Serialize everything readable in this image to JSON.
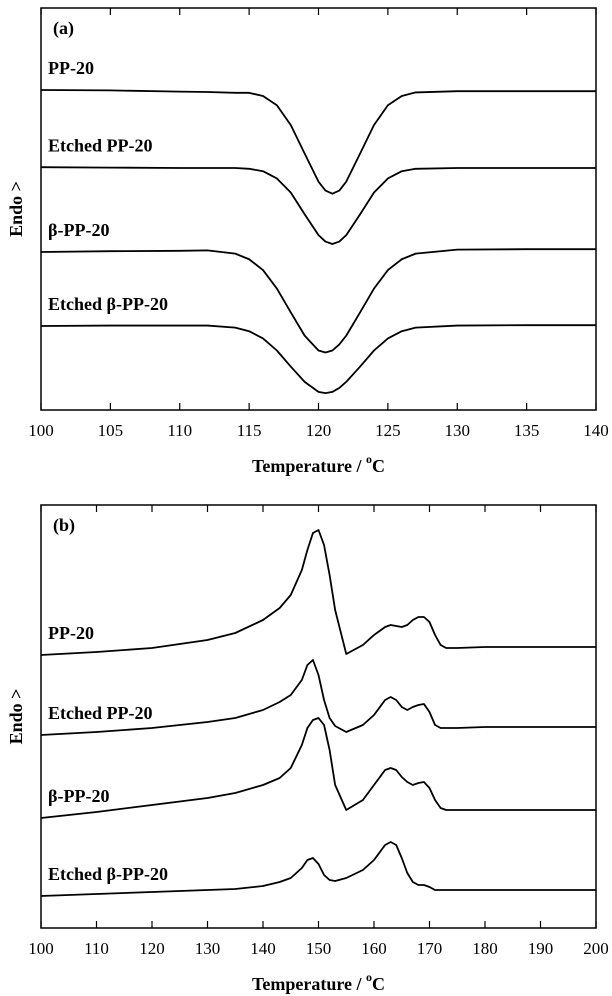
{
  "chart_data": [
    {
      "type": "line",
      "panel_label": "(a)",
      "ylabel": "Endo >",
      "xlabel": {
        "text": "Temperature / ",
        "sup": "o",
        "unit": "C"
      },
      "xlim": [
        100,
        140
      ],
      "xticks": [
        100,
        105,
        110,
        115,
        120,
        125,
        130,
        135,
        140
      ],
      "ylim": [
        0,
        100
      ],
      "x": [
        100,
        105,
        110,
        112,
        114,
        115,
        116,
        117,
        118,
        119,
        120,
        120.5,
        121,
        121.5,
        122,
        123,
        124,
        125,
        126,
        127,
        130,
        135,
        140
      ],
      "series": [
        {
          "name": "PP-20",
          "color": "#000000",
          "values": [
            79.6,
            79.5,
            79.2,
            79.1,
            78.9,
            78.9,
            78.1,
            75.8,
            70.9,
            63.8,
            56.8,
            54.6,
            53.8,
            54.6,
            56.8,
            63.8,
            70.9,
            75.8,
            78.1,
            79.0,
            79.3,
            79.3,
            79.3
          ]
        },
        {
          "name": "Etched PP-20",
          "color": "#000000",
          "values": [
            60.4,
            60.3,
            60.2,
            60.2,
            60.2,
            60.0,
            59.4,
            57.6,
            54.1,
            48.7,
            43.5,
            41.9,
            41.3,
            41.9,
            43.5,
            48.7,
            54.1,
            57.6,
            59.4,
            60.0,
            60.2,
            60.2,
            60.2
          ]
        },
        {
          "name": "β-PP-20",
          "color": "#000000",
          "values": [
            39.3,
            39.5,
            39.6,
            39.7,
            38.9,
            37.5,
            34.8,
            30.2,
            24.3,
            18.5,
            14.8,
            14.3,
            14.8,
            16.3,
            18.5,
            24.3,
            30.2,
            34.8,
            37.5,
            38.9,
            39.9,
            40.0,
            40.0
          ]
        },
        {
          "name": "Etched β-PP-20",
          "color": "#000000",
          "values": [
            20.9,
            21.0,
            21.0,
            21.0,
            20.5,
            19.6,
            17.8,
            14.8,
            10.8,
            7.0,
            4.5,
            4.2,
            4.5,
            5.5,
            7.0,
            10.8,
            14.8,
            17.8,
            19.6,
            20.5,
            21.0,
            21.1,
            21.1
          ]
        }
      ]
    },
    {
      "type": "line",
      "panel_label": "(b)",
      "ylabel": "Endo >",
      "xlabel": {
        "text": "Temperature / ",
        "sup": "o",
        "unit": "C"
      },
      "xlim": [
        100,
        200
      ],
      "xticks": [
        100,
        110,
        120,
        130,
        140,
        150,
        160,
        170,
        180,
        190,
        200
      ],
      "ylim": [
        0,
        423
      ],
      "x": [
        100,
        110,
        120,
        130,
        135,
        140,
        143,
        145,
        147,
        148,
        149,
        150,
        151,
        152,
        153,
        155,
        158,
        160,
        162,
        163,
        164,
        165,
        166,
        167,
        168,
        169,
        170,
        171,
        172,
        173,
        175,
        180,
        190,
        200
      ],
      "series": [
        {
          "name": "PP-20",
          "color": "#000000",
          "values": [
            273,
            276,
            280,
            288,
            295,
            308,
            320,
            333,
            358,
            378,
            395,
            398,
            383,
            353,
            318,
            274,
            283,
            293,
            301,
            303,
            302,
            301,
            303,
            308,
            311,
            311,
            306,
            293,
            283,
            280,
            280,
            281,
            281,
            281
          ]
        },
        {
          "name": "Etched PP-20",
          "color": "#000000",
          "values": [
            193,
            196,
            200,
            206,
            210,
            218,
            226,
            233,
            248,
            263,
            268,
            253,
            228,
            210,
            202,
            196,
            203,
            213,
            228,
            231,
            228,
            221,
            218,
            221,
            223,
            224,
            216,
            203,
            200,
            200,
            200,
            201,
            201,
            201
          ]
        },
        {
          "name": "β-PP-20",
          "color": "#000000",
          "values": [
            110,
            116,
            123,
            130,
            135,
            143,
            150,
            160,
            183,
            200,
            208,
            210,
            203,
            178,
            143,
            118,
            128,
            143,
            158,
            160,
            158,
            151,
            146,
            143,
            145,
            146,
            140,
            128,
            120,
            118,
            118,
            118,
            118,
            118
          ]
        },
        {
          "name": "Etched β-PP-20",
          "color": "#000000",
          "values": [
            32,
            34,
            36,
            38,
            39,
            42,
            46,
            50,
            60,
            68,
            70,
            64,
            53,
            48,
            47,
            50,
            58,
            68,
            83,
            86,
            83,
            70,
            55,
            46,
            43,
            43,
            41,
            38,
            38,
            38,
            38,
            38,
            38,
            38
          ]
        }
      ]
    }
  ]
}
